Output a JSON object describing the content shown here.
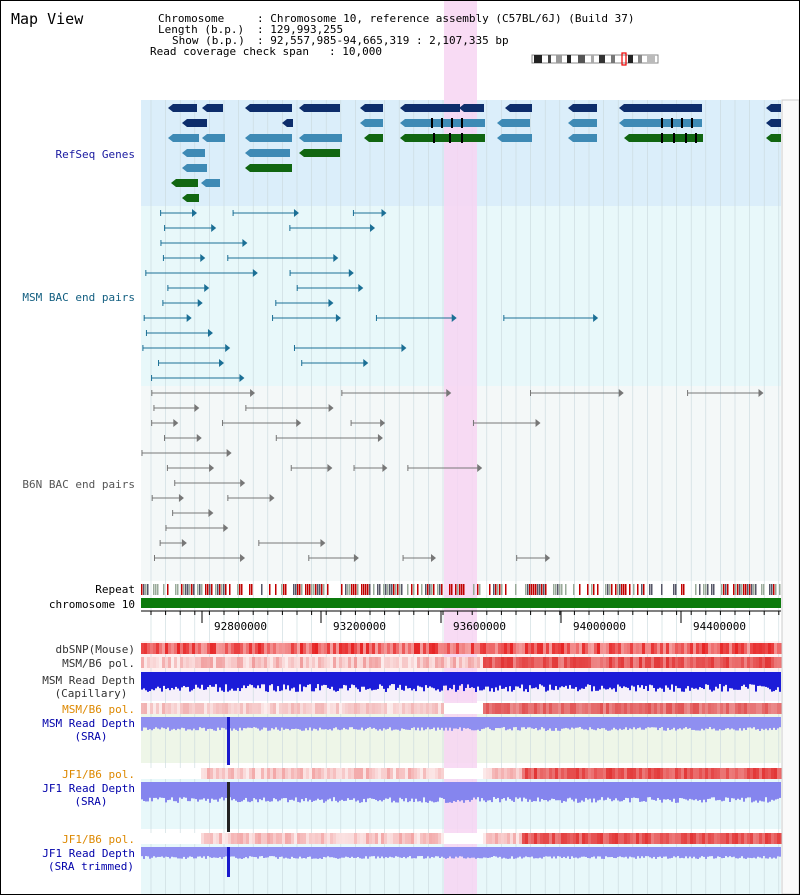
{
  "title": "Map View",
  "info": {
    "chromosome_key": "Chromosome",
    "chromosome_val": ": Chromosome 10, reference assembly (C57BL/6J) (Build 37)",
    "length_key": "Length (b.p.)",
    "length_val": ": 129,993,255",
    "show_key": "Show (b.p.)",
    "show_val": ": 92,557,985-94,665,319 : 2,107,335 bp",
    "span_key": "Read coverage check span",
    "span_val": ": 10,000"
  },
  "tracks": {
    "refseq": "RefSeq Genes",
    "msm_bac": "MSM BAC end pairs",
    "b6n_bac": "B6N BAC end pairs",
    "repeat": "Repeat",
    "chromosome": "chromosome 10",
    "dbsnp": "dbSNP(Mouse)",
    "msm_b6_pol": "MSM/B6 pol.",
    "msm_depth_cap_1": "MSM Read Depth",
    "msm_depth_cap_2": "(Capillary)",
    "msm_b6_pol_2": "MSM/B6 pol.",
    "msm_depth_sra_1": "MSM Read Depth",
    "msm_depth_sra_2": "(SRA)",
    "jf1_b6_pol": "JF1/B6 pol.",
    "jf1_depth_sra_1": "JF1 Read Depth",
    "jf1_depth_sra_2": "(SRA)",
    "jf1_b6_pol_2": "JF1/B6 pol.",
    "jf1_depth_trim_1": "JF1 Read Depth",
    "jf1_depth_trim_2": "(SRA trimmed)"
  },
  "ruler": [
    "92800000",
    "93200000",
    "93600000",
    "94000000",
    "94400000"
  ],
  "colors": {
    "refseq_bg": "#dbeefa",
    "bac_bg": "#e8f8fa",
    "b6n_bg": "#f4f8f8",
    "highlight": "#f7d5f2",
    "gene_dark": "#0d2d6b",
    "gene_mid": "#3e8ab5",
    "gene_green": "#116611",
    "msm_line": "#1b6f95",
    "b6n_line": "#777777",
    "chrom": "#0c7a0c",
    "orange_label": "#dd8800",
    "blue_label": "#0000aa"
  }
}
